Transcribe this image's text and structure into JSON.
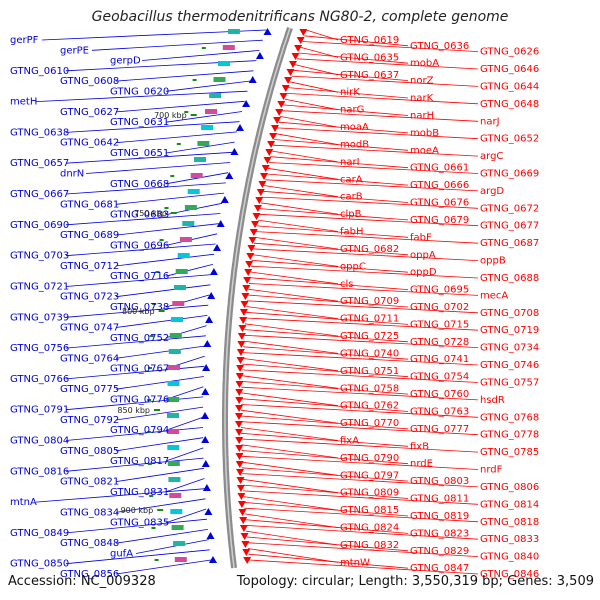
{
  "title": "Geobacillus thermodenitrificans NG80-2, complete genome",
  "footer": {
    "accession": "Accession: NC_009328",
    "summary": "Topology: circular; Length: 3,550,319 bp; Genes: 3,509"
  },
  "colors": {
    "forward_strand": "#ff0000",
    "reverse_strand": "#0000dd",
    "backbone": "#8c8c8c",
    "kbp_tick": "#1a8a1a"
  },
  "kbp_marks": [
    "700 kbp",
    "750 kbp",
    "800 kbp",
    "850 kbp",
    "900 kbp"
  ],
  "reverse_labels": [
    "gerPF",
    "gerPE",
    "gerpD",
    "GTNG_0610",
    "GTNG_0608",
    "GTNG_0620",
    "metH",
    "GTNG_0627",
    "GTNG_0631",
    "GTNG_0638",
    "GTNG_0642",
    "GTNG_0651",
    "GTNG_0657",
    "dnrN",
    "GTNG_0668",
    "GTNG_0667",
    "GTNG_0681",
    "GTNG_0683",
    "GTNG_0690",
    "GTNG_0689",
    "GTNG_0696",
    "GTNG_0703",
    "GTNG_0712",
    "GTNG_0716",
    "GTNG_0721",
    "GTNG_0723",
    "GTNG_0738",
    "GTNG_0739",
    "GTNG_0747",
    "GTNG_0752",
    "GTNG_0756",
    "GTNG_0764",
    "GTNG_0767",
    "GTNG_0766",
    "GTNG_0775",
    "GTNG_0776",
    "GTNG_0791",
    "GTNG_0792",
    "GTNG_0794",
    "GTNG_0804",
    "GTNG_0805",
    "GTNG_0817",
    "GTNG_0816",
    "GTNG_0821",
    "GTNG_0831",
    "mtnA",
    "GTNG_0834",
    "GTNG_0835",
    "GTNG_0849",
    "GTNG_0848",
    "gufA",
    "GTNG_0850",
    "GTNG_0856"
  ],
  "forward_labels": [
    "GTNG_0619",
    "GTNG_0636",
    "GTNG_0626",
    "GTNG_0635",
    "mobA",
    "GTNG_0646",
    "GTNG_0637",
    "norZ",
    "GTNG_0644",
    "nirK",
    "narK",
    "GTNG_0648",
    "narG",
    "narH",
    "narJ",
    "moaA",
    "mobB",
    "GTNG_0652",
    "modB",
    "moeA",
    "argC",
    "narI",
    "GTNG_0661",
    "GTNG_0669",
    "carA",
    "GTNG_0666",
    "argD",
    "carB",
    "GTNG_0676",
    "GTNG_0672",
    "clpB",
    "GTNG_0679",
    "GTNG_0677",
    "fabH",
    "fabF",
    "GTNG_0687",
    "GTNG_0682",
    "oppA",
    "oppB",
    "oppC",
    "oppD",
    "GTNG_0688",
    "cls",
    "GTNG_0695",
    "mecA",
    "GTNG_0709",
    "GTNG_0702",
    "GTNG_0708",
    "GTNG_0711",
    "GTNG_0715",
    "GTNG_0719",
    "GTNG_0725",
    "GTNG_0728",
    "GTNG_0734",
    "GTNG_0740",
    "GTNG_0741",
    "GTNG_0746",
    "GTNG_0751",
    "GTNG_0754",
    "GTNG_0757",
    "GTNG_0758",
    "GTNG_0760",
    "hsdR",
    "GTNG_0762",
    "GTNG_0763",
    "GTNG_0768",
    "GTNG_0770",
    "GTNG_0777",
    "GTNG_0778",
    "fixA",
    "fixB",
    "GTNG_0785",
    "GTNG_0790",
    "nrdE",
    "nrdF",
    "GTNG_0797",
    "GTNG_0803",
    "GTNG_0806",
    "GTNG_0809",
    "GTNG_0811",
    "GTNG_0814",
    "GTNG_0815",
    "GTNG_0819",
    "GTNG_0818",
    "GTNG_0824",
    "GTNG_0823",
    "GTNG_0833",
    "GTNG_0832",
    "GTNG_0829",
    "GTNG_0840",
    "mtnW",
    "GTNG_0847",
    "GTNG_0846"
  ]
}
